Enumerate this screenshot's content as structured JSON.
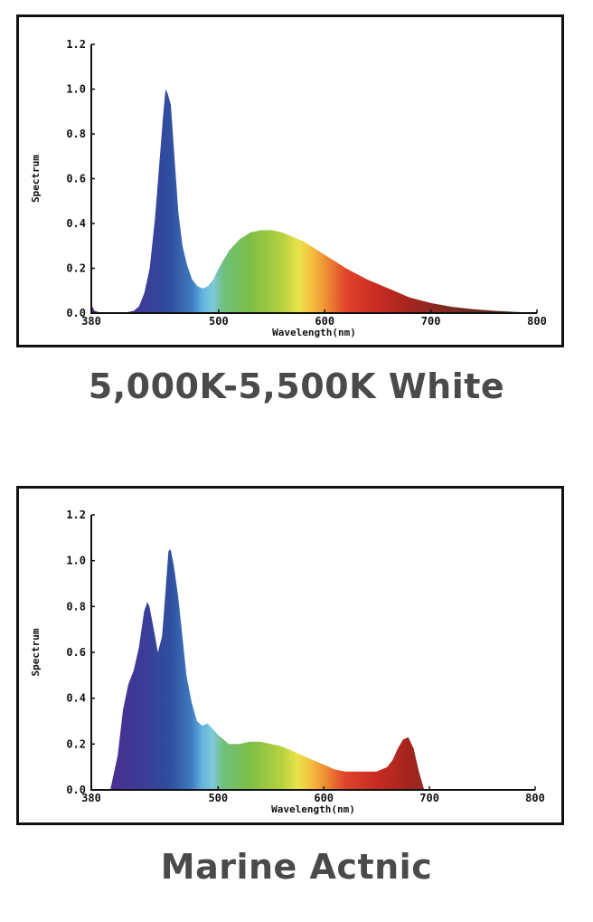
{
  "charts": [
    {
      "caption": "5,000K-5,500K White",
      "chart_data": {
        "type": "area",
        "title": "",
        "xlabel": "Wavelength(nm)",
        "ylabel": "Spectrum",
        "xlim": [
          380,
          800
        ],
        "ylim": [
          0,
          1.2
        ],
        "x_ticks": [
          "380",
          "500",
          "600",
          "700",
          "800"
        ],
        "y_ticks": [
          "0.0",
          "0.2",
          "0.4",
          "0.6",
          "0.8",
          "1.0",
          "1.2"
        ],
        "grid": false,
        "series": [
          {
            "x": [
              380,
              381,
              383,
              390,
              410,
              420,
              425,
              430,
              435,
              440,
              445,
              448,
              450,
              452,
              455,
              458,
              462,
              466,
              470,
              475,
              480,
              485,
              490,
              495,
              500,
              510,
              520,
              530,
              540,
              550,
              560,
              570,
              580,
              590,
              600,
              620,
              640,
              660,
              680,
              700,
              720,
              740,
              760,
              780,
              800
            ],
            "y": [
              0.0,
              0.03,
              0.01,
              0.0,
              0.0,
              0.01,
              0.03,
              0.09,
              0.2,
              0.42,
              0.72,
              0.9,
              1.0,
              0.98,
              0.93,
              0.72,
              0.45,
              0.3,
              0.22,
              0.15,
              0.12,
              0.11,
              0.12,
              0.15,
              0.2,
              0.28,
              0.33,
              0.36,
              0.37,
              0.37,
              0.36,
              0.34,
              0.32,
              0.29,
              0.26,
              0.2,
              0.15,
              0.11,
              0.07,
              0.045,
              0.028,
              0.017,
              0.01,
              0.005,
              0.002
            ]
          }
        ]
      }
    },
    {
      "caption": "Marine Actnic",
      "chart_data": {
        "type": "area",
        "title": "",
        "xlabel": "Wavelength(nm)",
        "ylabel": "Spectrum",
        "xlim": [
          380,
          800
        ],
        "ylim": [
          0,
          1.2
        ],
        "x_ticks": [
          "380",
          "500",
          "600",
          "700",
          "800"
        ],
        "y_ticks": [
          "0.0",
          "0.2",
          "0.4",
          "0.6",
          "0.8",
          "1.0",
          "1.2"
        ],
        "grid": false,
        "series": [
          {
            "x": [
              398,
              405,
              410,
              415,
              420,
              425,
              430,
              433,
              435,
              440,
              443,
              447,
              450,
              453,
              455,
              458,
              462,
              466,
              470,
              475,
              480,
              485,
              490,
              500,
              510,
              520,
              530,
              540,
              550,
              560,
              570,
              580,
              590,
              600,
              610,
              620,
              630,
              640,
              650,
              660,
              665,
              670,
              675,
              680,
              685,
              690,
              695
            ],
            "y": [
              0.0,
              0.15,
              0.35,
              0.46,
              0.52,
              0.62,
              0.78,
              0.82,
              0.8,
              0.68,
              0.6,
              0.67,
              0.85,
              1.04,
              1.05,
              0.98,
              0.85,
              0.68,
              0.5,
              0.38,
              0.3,
              0.28,
              0.29,
              0.24,
              0.2,
              0.2,
              0.21,
              0.21,
              0.2,
              0.19,
              0.17,
              0.15,
              0.13,
              0.11,
              0.09,
              0.08,
              0.08,
              0.08,
              0.08,
              0.1,
              0.13,
              0.18,
              0.22,
              0.23,
              0.18,
              0.08,
              0.0
            ]
          }
        ]
      }
    }
  ]
}
